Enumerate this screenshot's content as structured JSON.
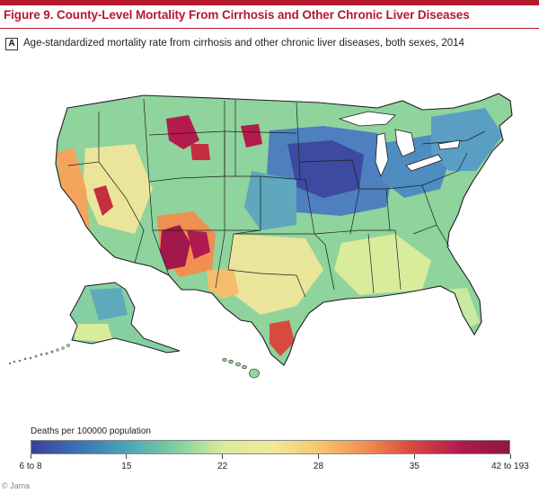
{
  "figure": {
    "title": "Figure 9. County-Level Mortality From Cirrhosis and Other Chronic Liver Diseases",
    "panel_letter": "A",
    "panel_caption": "Age-standardized mortality rate from cirrhosis and other chronic liver diseases, both sexes, 2014"
  },
  "legend": {
    "title": "Deaths per 100000 population",
    "ticks": [
      {
        "label": "6 to 8",
        "pos": 0.0
      },
      {
        "label": "15",
        "pos": 0.2
      },
      {
        "label": "22",
        "pos": 0.4
      },
      {
        "label": "28",
        "pos": 0.6
      },
      {
        "label": "35",
        "pos": 0.8
      },
      {
        "label": "42 to 193",
        "pos": 1.0
      }
    ],
    "colors": [
      "#3c3f97",
      "#3b74b4",
      "#4aa5b5",
      "#7ecda2",
      "#d6ec9b",
      "#f3e89a",
      "#f8c670",
      "#f08f50",
      "#d8453e",
      "#b01a4f",
      "#8e1545"
    ]
  },
  "credit": "© Jama",
  "colors": {
    "accent": "#b4192e",
    "high_mortality": "#9b1846",
    "low_mortality": "#3c46a0",
    "state_border": "#1e1e1e"
  }
}
